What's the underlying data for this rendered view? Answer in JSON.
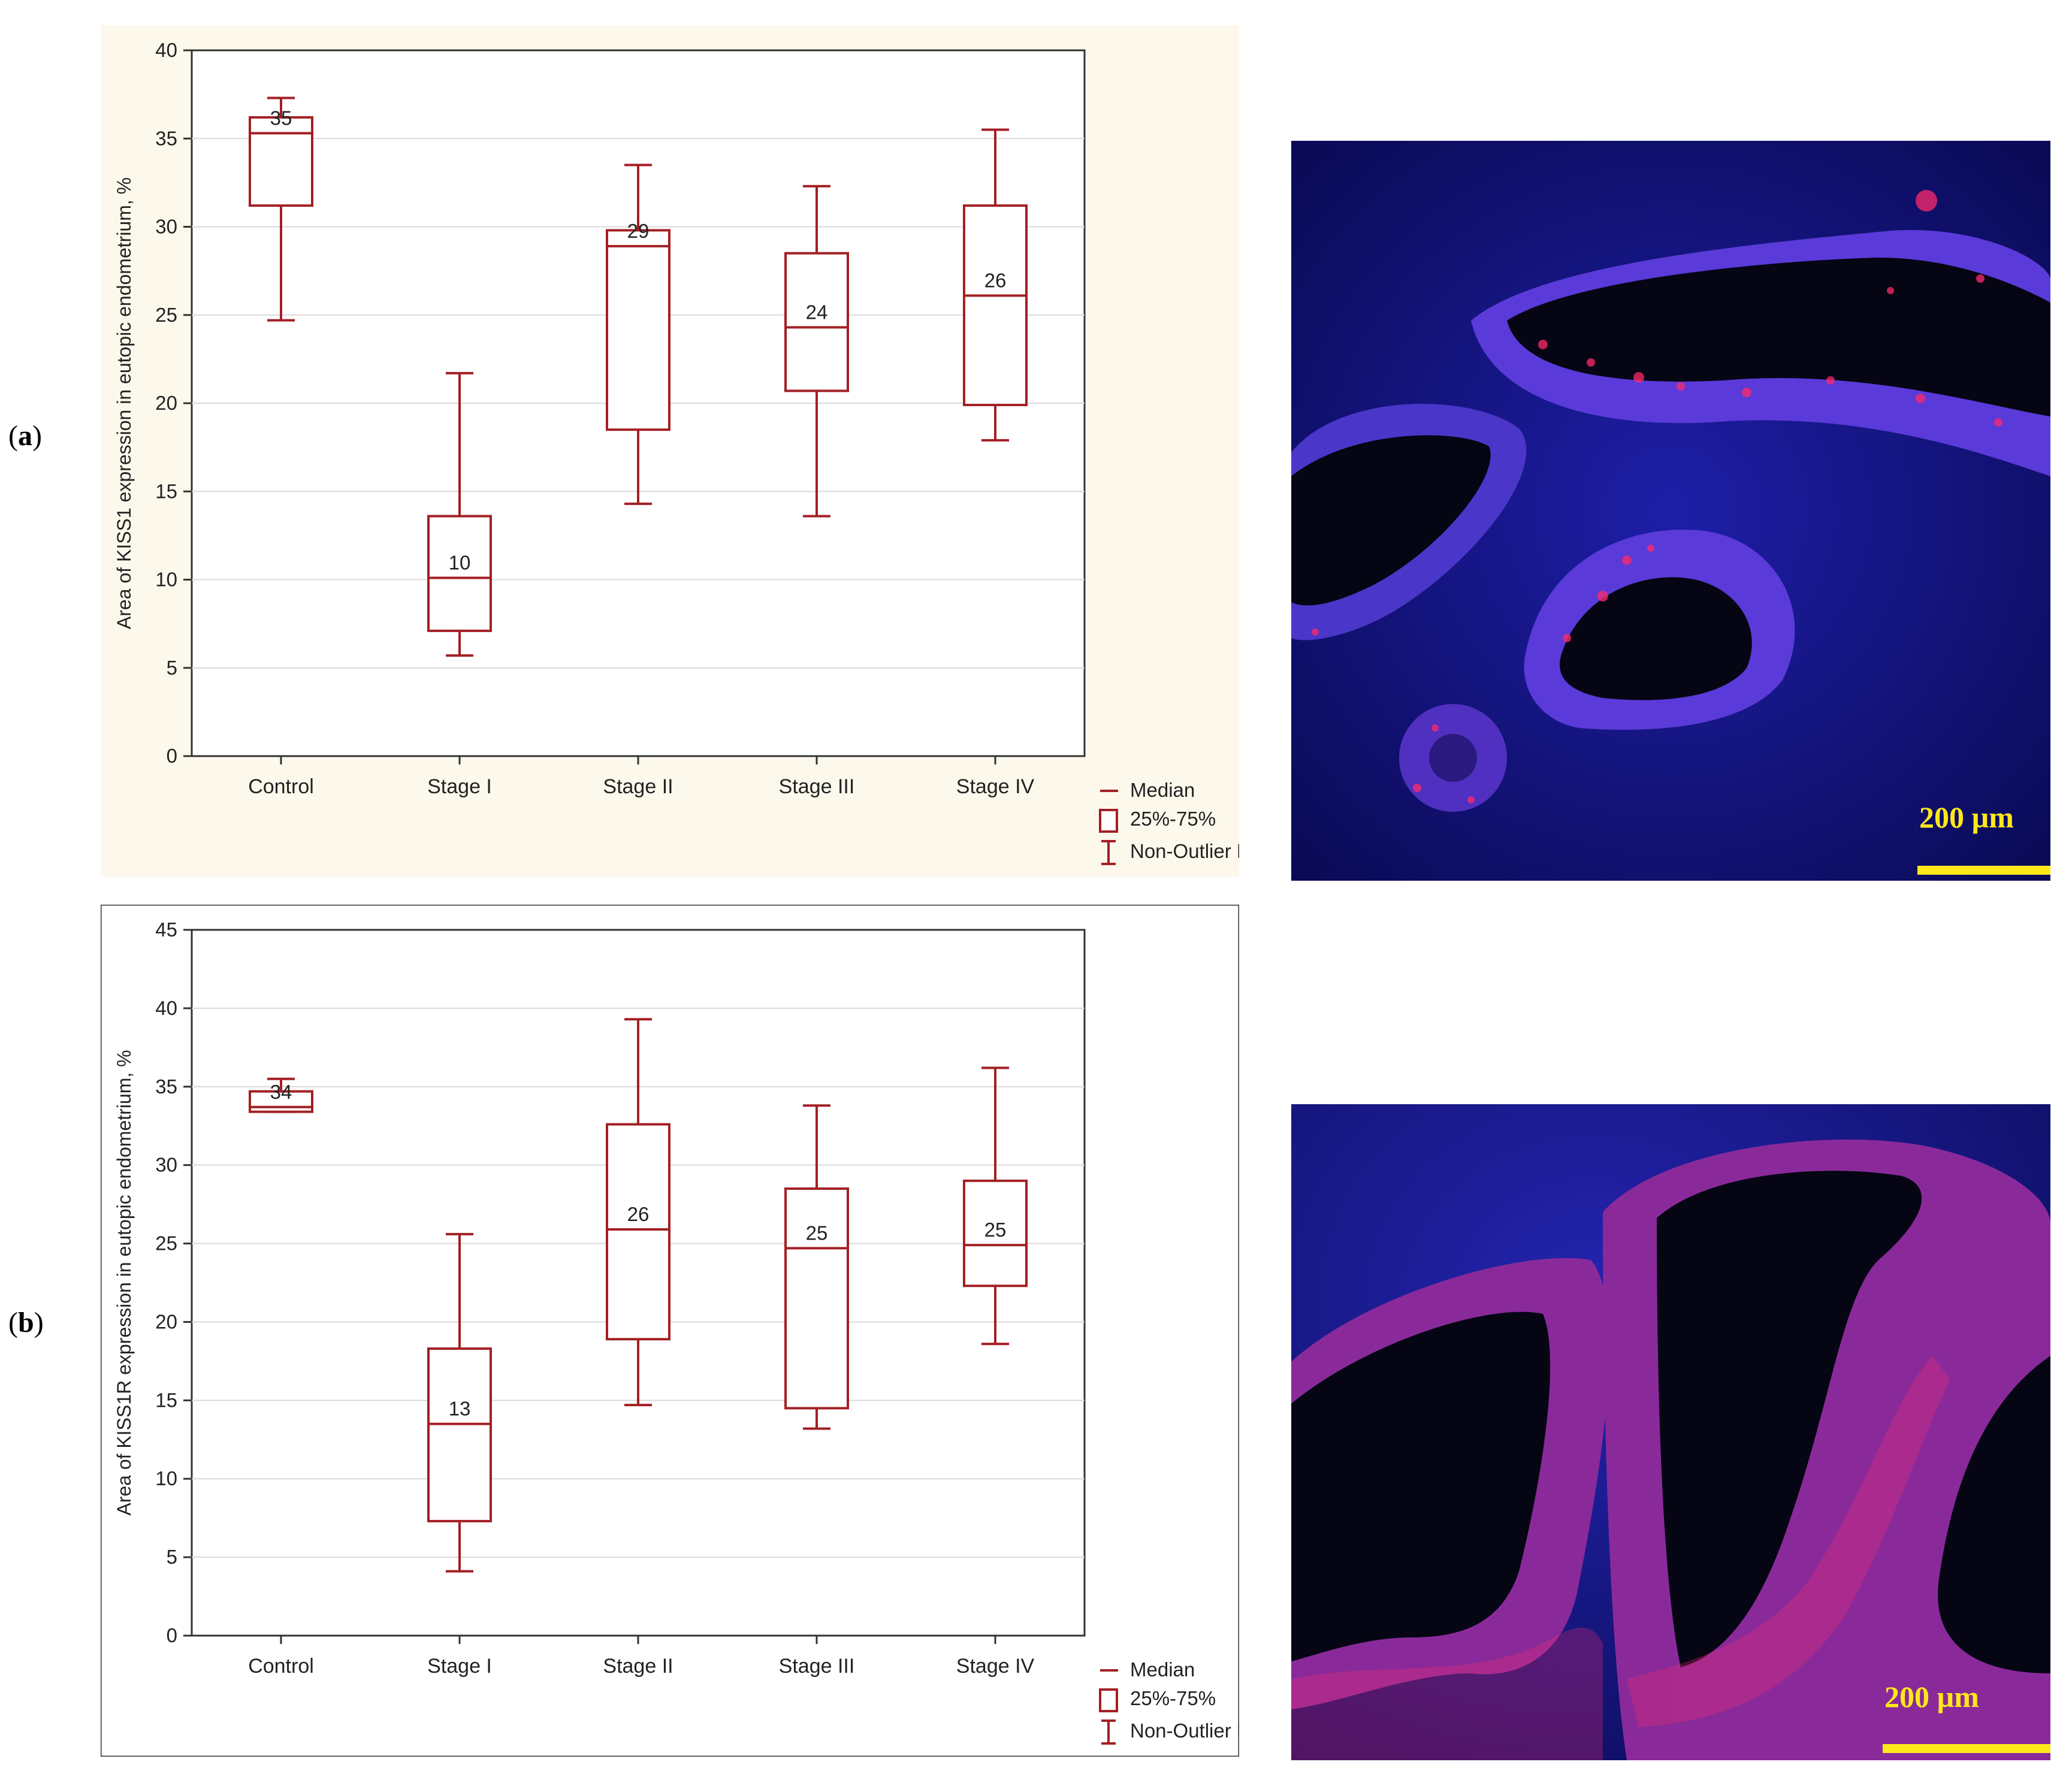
{
  "panels": [
    {
      "letter": "a",
      "paren_open": "(",
      "paren_close": ")"
    },
    {
      "letter": "b",
      "paren_open": "(",
      "paren_close": ")"
    }
  ],
  "colors": {
    "box": "#a31f24",
    "panel_bg_a": "#fcf8ec",
    "panel_bg_b": "#ffffff",
    "grid": "#d9d9d9",
    "scale_bar": "#ffe81a",
    "stain_nuclei": "#2a2ad8",
    "stain_signal": "#ff2a6a"
  },
  "chart_data": [
    {
      "type": "boxplot",
      "ylabel": "Area of KISS1 expression in eutopic endometrium, %",
      "ylim": [
        0,
        40
      ],
      "yticks": [
        0,
        5,
        10,
        15,
        20,
        25,
        30,
        35,
        40
      ],
      "grid": true,
      "categories": [
        "Control",
        "Stage I",
        "Stage II",
        "Stage III",
        "Stage IV"
      ],
      "median": [
        35.3,
        10.1,
        28.9,
        24.3,
        26.1
      ],
      "q1": [
        31.2,
        7.1,
        18.5,
        20.7,
        19.9
      ],
      "q3": [
        36.2,
        13.6,
        29.8,
        28.5,
        31.2
      ],
      "whisker_low": [
        24.7,
        5.7,
        14.3,
        13.6,
        17.9
      ],
      "whisker_high": [
        37.3,
        21.7,
        33.5,
        32.3,
        35.5
      ],
      "median_labels": [
        "35",
        "10",
        "29",
        "24",
        "26"
      ],
      "legend": {
        "position": "bottom-right",
        "items": [
          "Median",
          "25%-75%",
          "Non-Outlier Range"
        ]
      }
    },
    {
      "type": "boxplot",
      "ylabel": "Area of KISS1R expression in eutopic endometrium, %",
      "ylim": [
        0,
        45
      ],
      "yticks": [
        0,
        5,
        10,
        15,
        20,
        25,
        30,
        35,
        40,
        45
      ],
      "grid": true,
      "categories": [
        "Control",
        "Stage I",
        "Stage II",
        "Stage III",
        "Stage IV"
      ],
      "median": [
        33.7,
        13.5,
        25.9,
        24.7,
        24.9
      ],
      "q1": [
        33.4,
        7.3,
        18.9,
        14.5,
        22.3
      ],
      "q3": [
        34.7,
        18.3,
        32.6,
        28.5,
        29.0
      ],
      "whisker_low": [
        33.4,
        4.1,
        14.7,
        13.2,
        18.6
      ],
      "whisker_high": [
        35.5,
        25.6,
        39.3,
        33.8,
        36.2
      ],
      "median_labels": [
        "34",
        "13",
        "26",
        "25",
        "25"
      ],
      "legend": {
        "position": "bottom-right",
        "items": [
          "Median",
          "25%-75%",
          "Non-Outlier Range"
        ]
      }
    }
  ],
  "micrographs": [
    {
      "scale_label": "200 µm"
    },
    {
      "scale_label": "200 µm"
    }
  ]
}
